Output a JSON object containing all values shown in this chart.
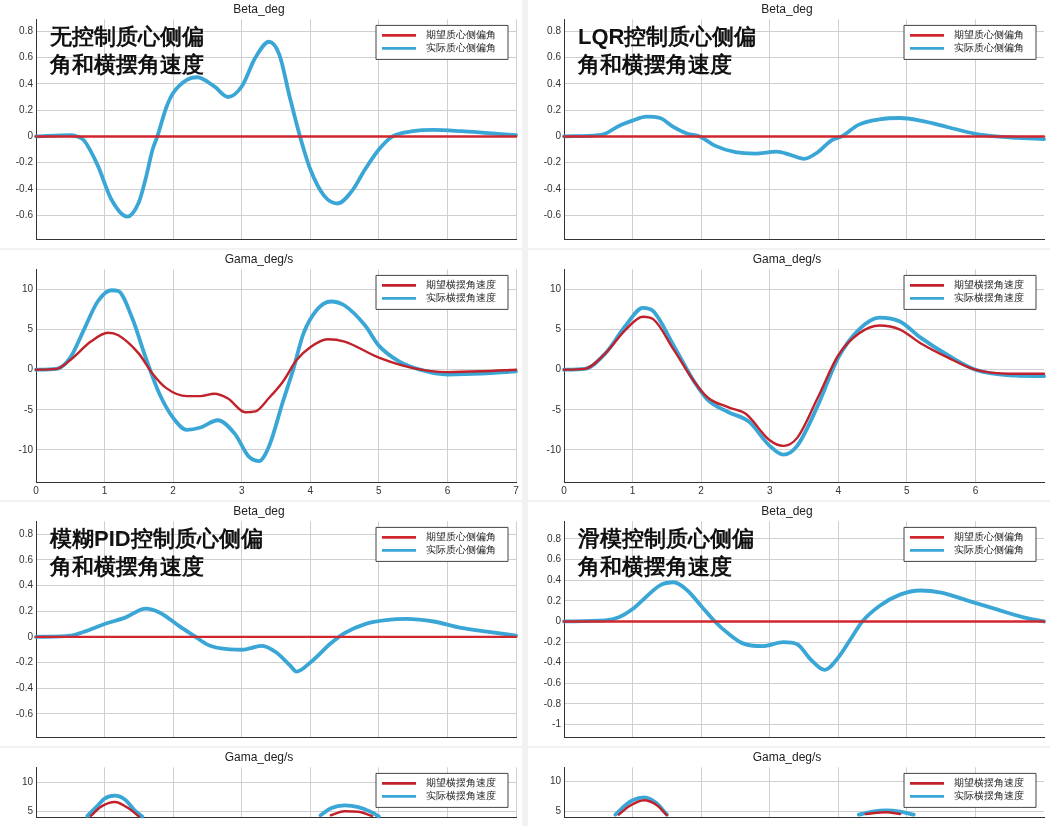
{
  "chart_data": [
    {
      "type": "line",
      "title": "Beta_deg",
      "annotations": [
        "无控制质心侧偏角和横摆角速度"
      ],
      "xlim": [
        0,
        7
      ],
      "xticks": [
        0,
        1,
        2,
        3,
        4,
        5,
        6,
        7
      ],
      "ylim": [
        -0.78,
        0.89
      ],
      "yticks": [
        -0.6,
        -0.4,
        -0.2,
        0,
        0.2,
        0.4,
        0.6,
        0.8
      ],
      "tick_labels": "y",
      "grid": true,
      "legend": "top right",
      "marker": "none",
      "line_style": "solid",
      "series": [
        {
          "name": "期望质心侧偏角",
          "color": "#d0262d",
          "x": [
            0,
            7
          ],
          "values": [
            0,
            0
          ]
        },
        {
          "name": "实际质心侧偏角",
          "color": "#3aa6d6",
          "x": [
            0,
            0.5,
            0.6,
            0.7,
            0.9,
            1.1,
            1.33,
            1.5,
            1.6,
            1.7,
            1.77,
            1.9,
            2,
            2.2,
            2.35,
            2.6,
            2.8,
            3,
            3.2,
            3.4,
            3.55,
            3.7,
            3.85,
            4,
            4.2,
            4.4,
            4.6,
            4.8,
            5,
            5.2,
            5.5,
            5.8,
            6.2,
            6.6,
            7
          ],
          "values": [
            0,
            0.01,
            0,
            -0.03,
            -0.22,
            -0.48,
            -0.61,
            -0.5,
            -0.32,
            -0.1,
            0,
            0.22,
            0.33,
            0.43,
            0.45,
            0.38,
            0.3,
            0.38,
            0.6,
            0.72,
            0.62,
            0.3,
            0,
            -0.25,
            -0.45,
            -0.51,
            -0.42,
            -0.25,
            -0.1,
            0,
            0.04,
            0.05,
            0.04,
            0.025,
            0.01
          ]
        }
      ]
    },
    {
      "type": "line",
      "title": "Beta_deg",
      "annotations": [
        "LQR控制质心侧偏角和横摆角速度"
      ],
      "xlim": [
        0,
        7
      ],
      "xticks": [
        0,
        1,
        2,
        3,
        4,
        5,
        6
      ],
      "ylim": [
        -0.78,
        0.89
      ],
      "yticks": [
        -0.6,
        -0.4,
        -0.2,
        0,
        0.2,
        0.4,
        0.6,
        0.8
      ],
      "tick_labels": "y",
      "grid": true,
      "legend": "top right",
      "marker": "none",
      "line_style": "solid",
      "series": [
        {
          "name": "期望质心侧偏角",
          "color": "#d0262d",
          "x": [
            0,
            7
          ],
          "values": [
            0,
            0
          ]
        },
        {
          "name": "实际质心侧偏角",
          "color": "#3aa6d6",
          "x": [
            0,
            0.5,
            0.6,
            0.8,
            1,
            1.2,
            1.4,
            1.6,
            1.8,
            1.98,
            2.2,
            2.5,
            2.8,
            3.1,
            3.3,
            3.5,
            3.7,
            3.9,
            4.05,
            4.3,
            4.6,
            4.9,
            5.2,
            5.6,
            6,
            6.3,
            6.6,
            7
          ],
          "values": [
            0,
            0.01,
            0.02,
            0.08,
            0.12,
            0.15,
            0.14,
            0.07,
            0.02,
            0,
            -0.07,
            -0.12,
            -0.13,
            -0.115,
            -0.14,
            -0.17,
            -0.12,
            -0.03,
            0,
            0.09,
            0.13,
            0.14,
            0.12,
            0.07,
            0.02,
            0,
            -0.01,
            -0.02
          ]
        }
      ]
    },
    {
      "type": "line",
      "title": "Gama_deg/s",
      "xlim": [
        0,
        7
      ],
      "xticks": [
        0,
        1,
        2,
        3,
        4,
        5,
        6,
        7
      ],
      "ylim": [
        -14,
        12.5
      ],
      "yticks": [
        -10,
        -5,
        0,
        5,
        10
      ],
      "grid": true,
      "legend": "top right",
      "marker": "none",
      "line_style": "solid",
      "series": [
        {
          "name": "期望横摆角速度",
          "color": "#c0212a",
          "x": [
            0,
            0.3,
            0.5,
            0.8,
            1.05,
            1.2,
            1.5,
            1.7,
            1.9,
            2.2,
            2.4,
            2.6,
            2.8,
            3.05,
            3.2,
            3.4,
            3.6,
            3.8,
            4,
            4.25,
            4.5,
            5,
            5.5,
            6,
            6.5,
            7
          ],
          "values": [
            0,
            0.1,
            1.2,
            3.5,
            4.6,
            4.3,
            2,
            -0.5,
            -2.3,
            -3.3,
            -3.3,
            -3,
            -3.6,
            -5.3,
            -5.2,
            -3.5,
            -1.5,
            1.2,
            2.8,
            3.8,
            3.5,
            1.5,
            0.2,
            -0.3,
            -0.2,
            0
          ]
        },
        {
          "name": "实际横摆角速度",
          "color": "#3aa6d6",
          "x": [
            0,
            0.3,
            0.5,
            0.7,
            0.9,
            1.1,
            1.2,
            1.4,
            1.6,
            1.8,
            2,
            2.2,
            2.4,
            2.65,
            2.9,
            3.1,
            3.25,
            3.4,
            3.6,
            3.75,
            3.9,
            4.1,
            4.3,
            4.5,
            4.8,
            5,
            5.3,
            5.6,
            6,
            6.5,
            7
          ],
          "values": [
            0,
            0.1,
            1.5,
            5,
            8.5,
            9.9,
            9.8,
            6.5,
            1.5,
            -3,
            -6,
            -7.5,
            -7.2,
            -6.3,
            -8,
            -10.8,
            -11.4,
            -9.5,
            -4,
            0,
            4.5,
            7.5,
            8.5,
            8,
            5.5,
            3,
            1,
            0,
            -0.6,
            -0.5,
            -0.2
          ]
        }
      ]
    },
    {
      "type": "line",
      "title": "Gama_deg/s",
      "xlim": [
        0,
        7
      ],
      "xticks": [
        0,
        1,
        2,
        3,
        4,
        5,
        6
      ],
      "ylim": [
        -14,
        12.5
      ],
      "yticks": [
        -10,
        -5,
        0,
        5,
        10
      ],
      "grid": true,
      "legend": "top right",
      "marker": "none",
      "line_style": "solid",
      "series": [
        {
          "name": "期望横摆角速度",
          "color": "#c0212a",
          "x": [
            0,
            0.3,
            0.6,
            0.9,
            1.15,
            1.3,
            1.6,
            1.9,
            2.1,
            2.4,
            2.65,
            3,
            3.2,
            3.4,
            3.7,
            4,
            4.3,
            4.6,
            4.9,
            5.2,
            5.6,
            6,
            6.5,
            7
          ],
          "values": [
            0,
            0.1,
            2,
            5,
            6.6,
            6.3,
            2.5,
            -1.5,
            -3.5,
            -4.7,
            -5.5,
            -8.8,
            -9.5,
            -8.5,
            -3.5,
            1.8,
            4.5,
            5.5,
            5,
            3.3,
            1.5,
            0,
            -0.5,
            -0.5
          ]
        },
        {
          "name": "实际横摆角速度",
          "color": "#3aa6d6",
          "x": [
            0,
            0.3,
            0.6,
            0.9,
            1.15,
            1.3,
            1.6,
            1.9,
            2.1,
            2.4,
            2.7,
            3,
            3.2,
            3.4,
            3.7,
            4,
            4.3,
            4.6,
            4.9,
            5.2,
            5.6,
            6,
            6.5,
            7
          ],
          "values": [
            0,
            0.1,
            2,
            5.5,
            7.7,
            7.3,
            3,
            -1.5,
            -3.8,
            -5.3,
            -6.5,
            -9.5,
            -10.6,
            -9.5,
            -4.5,
            1.5,
            5,
            6.5,
            6,
            4,
            1.8,
            0,
            -0.7,
            -0.8
          ]
        }
      ]
    },
    {
      "type": "line",
      "title": "Beta_deg",
      "annotations": [
        "模糊PID控制质心侧偏角和横摆角速度"
      ],
      "xlim": [
        0,
        7
      ],
      "xticks": [
        0,
        1,
        2,
        3,
        4,
        5,
        6,
        7
      ],
      "ylim": [
        -0.78,
        0.9
      ],
      "yticks": [
        -0.6,
        -0.4,
        -0.2,
        0,
        0.2,
        0.4,
        0.6,
        0.8
      ],
      "tick_labels": "y",
      "grid": true,
      "legend": "top right",
      "marker": "none",
      "line_style": "solid",
      "series": [
        {
          "name": "期望质心侧偏角",
          "color": "#d0262d",
          "x": [
            0,
            7
          ],
          "values": [
            0,
            0
          ]
        },
        {
          "name": "实际质心侧偏角",
          "color": "#3aa6d6",
          "x": [
            0,
            0.5,
            0.7,
            1,
            1.3,
            1.6,
            1.8,
            2.1,
            2.3,
            2.5,
            2.7,
            3,
            3.3,
            3.5,
            3.7,
            3.8,
            4,
            4.3,
            4.5,
            4.8,
            5.1,
            5.4,
            5.8,
            6.2,
            6.6,
            7
          ],
          "values": [
            0,
            0.01,
            0.04,
            0.1,
            0.15,
            0.22,
            0.19,
            0.08,
            0.01,
            -0.06,
            -0.09,
            -0.1,
            -0.07,
            -0.12,
            -0.22,
            -0.27,
            -0.2,
            -0.05,
            0.03,
            0.1,
            0.13,
            0.14,
            0.12,
            0.07,
            0.04,
            0.01
          ]
        }
      ]
    },
    {
      "type": "line",
      "title": "Beta_deg",
      "annotations": [
        "滑模控制质心侧偏角和横摆角速度"
      ],
      "xlim": [
        0,
        7
      ],
      "xticks": [
        0,
        1,
        2,
        3,
        4,
        5,
        6
      ],
      "ylim": [
        -1.12,
        0.97
      ],
      "yticks": [
        -1,
        -0.8,
        -0.6,
        -0.4,
        -0.2,
        0,
        0.2,
        0.4,
        0.6,
        0.8
      ],
      "tick_labels": "y",
      "grid": true,
      "legend": "top right",
      "marker": "none",
      "line_style": "solid",
      "series": [
        {
          "name": "期望质心侧偏角",
          "color": "#d0262d",
          "x": [
            0,
            7
          ],
          "values": [
            0,
            0
          ]
        },
        {
          "name": "实际质心侧偏角",
          "color": "#3aa6d6",
          "x": [
            0,
            0.6,
            0.8,
            1,
            1.2,
            1.4,
            1.6,
            1.8,
            2,
            2.2,
            2.4,
            2.6,
            2.9,
            3.2,
            3.4,
            3.6,
            3.8,
            4,
            4.2,
            4.35,
            4.6,
            4.9,
            5.2,
            5.5,
            5.9,
            6.3,
            6.7,
            7
          ],
          "values": [
            0,
            0.01,
            0.04,
            0.12,
            0.24,
            0.35,
            0.38,
            0.3,
            0.15,
            0,
            -0.12,
            -0.21,
            -0.24,
            -0.2,
            -0.22,
            -0.37,
            -0.47,
            -0.35,
            -0.15,
            0,
            0.15,
            0.26,
            0.3,
            0.28,
            0.2,
            0.12,
            0.04,
            0
          ]
        }
      ]
    },
    {
      "type": "line",
      "title": "Gama_deg/s",
      "xlim": [
        0,
        7
      ],
      "xticks": [
        0,
        1,
        2,
        3,
        4,
        5,
        6,
        7
      ],
      "ylim": [
        4,
        12.6
      ],
      "yticks": [
        5,
        10
      ],
      "tick_labels": "y",
      "grid": true,
      "legend": "top right",
      "marker": "none",
      "line_style": "solid",
      "series": [
        {
          "name": "期望横摆角速度",
          "color": "#c0212a",
          "x": [
            0.8,
            0.95,
            1.15,
            1.35,
            1.5,
            3,
            4.3,
            4.5,
            4.7,
            4.9
          ],
          "values": [
            4.2,
            5.8,
            6.6,
            5.5,
            4.1,
            null,
            4.3,
            5,
            4.9,
            4.2
          ]
        },
        {
          "name": "实际横摆角速度",
          "color": "#3aa6d6",
          "x": [
            0.75,
            0.9,
            1,
            1.15,
            1.3,
            1.45,
            1.55,
            3,
            4.15,
            4.3,
            4.5,
            4.7,
            4.9,
            5
          ],
          "values": [
            4.2,
            6,
            7.2,
            7.7,
            7,
            5,
            4.1,
            null,
            4.3,
            5.5,
            6,
            5.7,
            4.8,
            4.1
          ]
        }
      ]
    },
    {
      "type": "line",
      "title": "Gama_deg/s",
      "xlim": [
        0,
        7
      ],
      "xticks": [
        0,
        1,
        2,
        3,
        4,
        5,
        6
      ],
      "ylim": [
        4,
        12.3
      ],
      "yticks": [
        5,
        10
      ],
      "tick_labels": "y",
      "grid": true,
      "legend": "top right",
      "marker": "none",
      "line_style": "solid",
      "series": [
        {
          "name": "期望横摆角速度",
          "color": "#c0212a",
          "x": [
            0.8,
            0.95,
            1.17,
            1.35,
            1.5,
            3,
            4.4,
            4.7,
            4.9
          ],
          "values": [
            4.4,
            5.8,
            6.8,
            6,
            4.3,
            null,
            4.5,
            4.8,
            4.5
          ]
        },
        {
          "name": "实际横摆角速度",
          "color": "#3aa6d6",
          "x": [
            0.75,
            0.9,
            1,
            1.17,
            1.35,
            1.5,
            3,
            4.3,
            4.5,
            4.7,
            4.9,
            5.1
          ],
          "values": [
            4.4,
            6,
            6.8,
            7.3,
            6.3,
            4.4,
            null,
            4.4,
            4.9,
            5.1,
            4.9,
            4.4
          ]
        }
      ]
    }
  ]
}
